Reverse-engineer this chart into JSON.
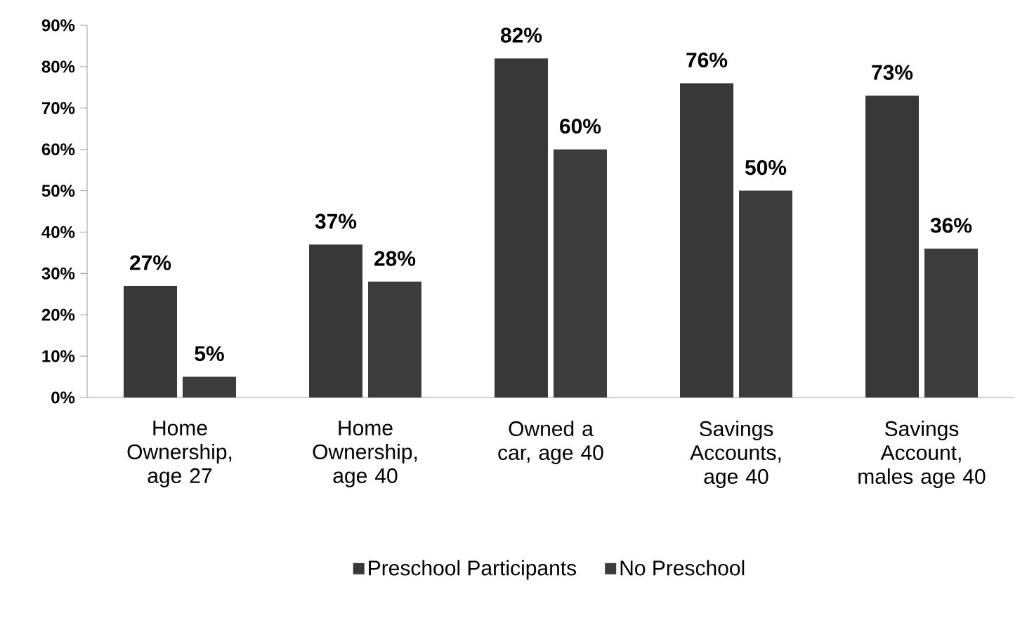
{
  "chart_data": {
    "type": "bar",
    "categories": [
      "Home Ownership, age 27",
      "Home Ownership, age 40",
      "Owned a car, age 40",
      "Savings Accounts, age 40",
      "Savings Account, males age 40"
    ],
    "series": [
      {
        "name": "Preschool Participants",
        "color": "#383838",
        "values": [
          27,
          37,
          82,
          76,
          73
        ],
        "value_labels": [
          "27%",
          "37%",
          "82%",
          "76%",
          "73%"
        ]
      },
      {
        "name": "No Preschool",
        "color": "#3c3c3c",
        "values": [
          5,
          28,
          60,
          50,
          36
        ],
        "value_labels": [
          "5%",
          "28%",
          "60%",
          "50%",
          "36%"
        ]
      }
    ],
    "ylim": [
      0,
      90
    ],
    "yticks": [
      {
        "value": 0,
        "label": "0%"
      },
      {
        "value": 10,
        "label": "10%"
      },
      {
        "value": 20,
        "label": "20%"
      },
      {
        "value": 30,
        "label": "30%"
      },
      {
        "value": 40,
        "label": "40%"
      },
      {
        "value": 50,
        "label": "50%"
      },
      {
        "value": 60,
        "label": "60%"
      },
      {
        "value": 70,
        "label": "70%"
      },
      {
        "value": 80,
        "label": "80%"
      },
      {
        "value": 90,
        "label": "90%"
      }
    ],
    "grid": false,
    "legend": "bottom"
  }
}
